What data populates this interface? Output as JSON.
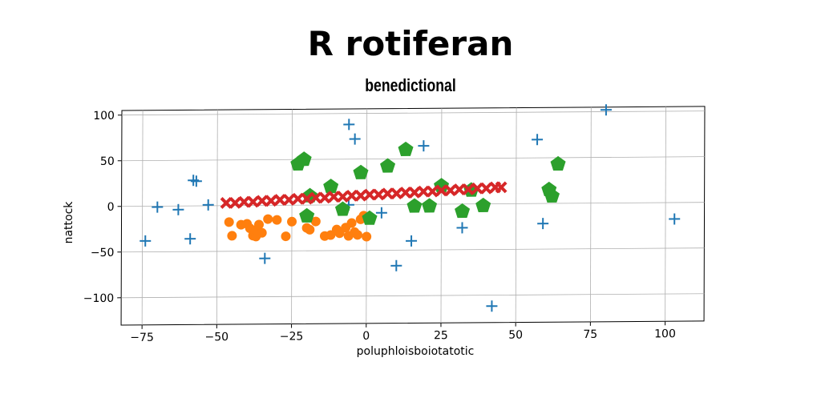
{
  "title": "R rotiferan",
  "subtitle": "benedictional",
  "chart_data": {
    "type": "scatter",
    "xlabel": "poluphloisboiotatotic",
    "ylabel": "nattock",
    "xlim": [
      -82,
      113
    ],
    "ylim": [
      -130,
      105
    ],
    "xticks": [
      -75,
      -50,
      -25,
      0,
      25,
      50,
      75,
      100
    ],
    "xtick_labels": [
      "−75",
      "−50",
      "−25",
      "0",
      "25",
      "50",
      "75",
      "100"
    ],
    "yticks": [
      -100,
      -50,
      0,
      50,
      100
    ],
    "ytick_labels": [
      "−100",
      "−50",
      "0",
      "50",
      "100"
    ],
    "grid": true,
    "series": [
      {
        "marker": "plus",
        "color": "#1f77b4",
        "points": [
          [
            -74,
            -38
          ],
          [
            -70,
            -1
          ],
          [
            -63,
            -4
          ],
          [
            -59,
            -36
          ],
          [
            -58,
            28
          ],
          [
            -57,
            27
          ],
          [
            -53,
            1
          ],
          [
            -34,
            -58
          ],
          [
            -6,
            88
          ],
          [
            -4,
            72
          ],
          [
            -6,
            0
          ],
          [
            5,
            -9
          ],
          [
            10,
            -67
          ],
          [
            15,
            -40
          ],
          [
            19,
            64
          ],
          [
            32,
            -26
          ],
          [
            42,
            -112
          ],
          [
            57,
            70
          ],
          [
            59,
            -22
          ],
          [
            80,
            102
          ],
          [
            103,
            -18
          ]
        ]
      },
      {
        "marker": "circle",
        "color": "#ff7f0e",
        "points": [
          [
            -46,
            -18
          ],
          [
            -45,
            -33
          ],
          [
            -42,
            -21
          ],
          [
            -40,
            -20
          ],
          [
            -39,
            -25
          ],
          [
            -38,
            -33
          ],
          [
            -37,
            -34
          ],
          [
            -37,
            -27
          ],
          [
            -36,
            -21
          ],
          [
            -35,
            -30
          ],
          [
            -33,
            -15
          ],
          [
            -30,
            -16
          ],
          [
            -27,
            -34
          ],
          [
            -25,
            -18
          ],
          [
            -20,
            -25
          ],
          [
            -19,
            -27
          ],
          [
            -17,
            -18
          ],
          [
            -14,
            -34
          ],
          [
            -12,
            -33
          ],
          [
            -10,
            -27
          ],
          [
            -9,
            -31
          ],
          [
            -7,
            -25
          ],
          [
            -5,
            -20
          ],
          [
            -3,
            -33
          ],
          [
            -2,
            -16
          ],
          [
            -4,
            -30
          ],
          [
            -6,
            -34
          ],
          [
            0,
            -35
          ],
          [
            -1,
            -12
          ]
        ]
      },
      {
        "marker": "pentagon",
        "color": "#2ca02c",
        "points": [
          [
            -23,
            45
          ],
          [
            -21,
            50
          ],
          [
            -20,
            -12
          ],
          [
            -19,
            10
          ],
          [
            -12,
            20
          ],
          [
            -8,
            -5
          ],
          [
            -2,
            35
          ],
          [
            1,
            -15
          ],
          [
            7,
            42
          ],
          [
            13,
            60
          ],
          [
            16,
            -2
          ],
          [
            21,
            -2
          ],
          [
            25,
            20
          ],
          [
            32,
            -8
          ],
          [
            35,
            15
          ],
          [
            39,
            -2
          ],
          [
            61,
            15
          ],
          [
            62,
            8
          ],
          [
            64,
            43
          ]
        ]
      },
      {
        "marker": "x",
        "color": "#d62728",
        "points": [
          [
            -47,
            3
          ],
          [
            -44,
            3
          ],
          [
            -41,
            4
          ],
          [
            -38,
            4
          ],
          [
            -35,
            5
          ],
          [
            -32,
            5
          ],
          [
            -29,
            6
          ],
          [
            -26,
            6
          ],
          [
            -23,
            7
          ],
          [
            -20,
            7
          ],
          [
            -17,
            8
          ],
          [
            -14,
            8
          ],
          [
            -11,
            9
          ],
          [
            -8,
            9
          ],
          [
            -5,
            10
          ],
          [
            -2,
            10
          ],
          [
            1,
            11
          ],
          [
            4,
            11
          ],
          [
            7,
            12
          ],
          [
            10,
            12
          ],
          [
            13,
            13
          ],
          [
            16,
            13
          ],
          [
            19,
            14
          ],
          [
            22,
            14
          ],
          [
            25,
            15
          ],
          [
            28,
            15
          ],
          [
            31,
            16
          ],
          [
            34,
            16
          ],
          [
            37,
            17
          ],
          [
            40,
            17
          ],
          [
            43,
            18
          ],
          [
            45,
            18
          ]
        ]
      }
    ]
  }
}
